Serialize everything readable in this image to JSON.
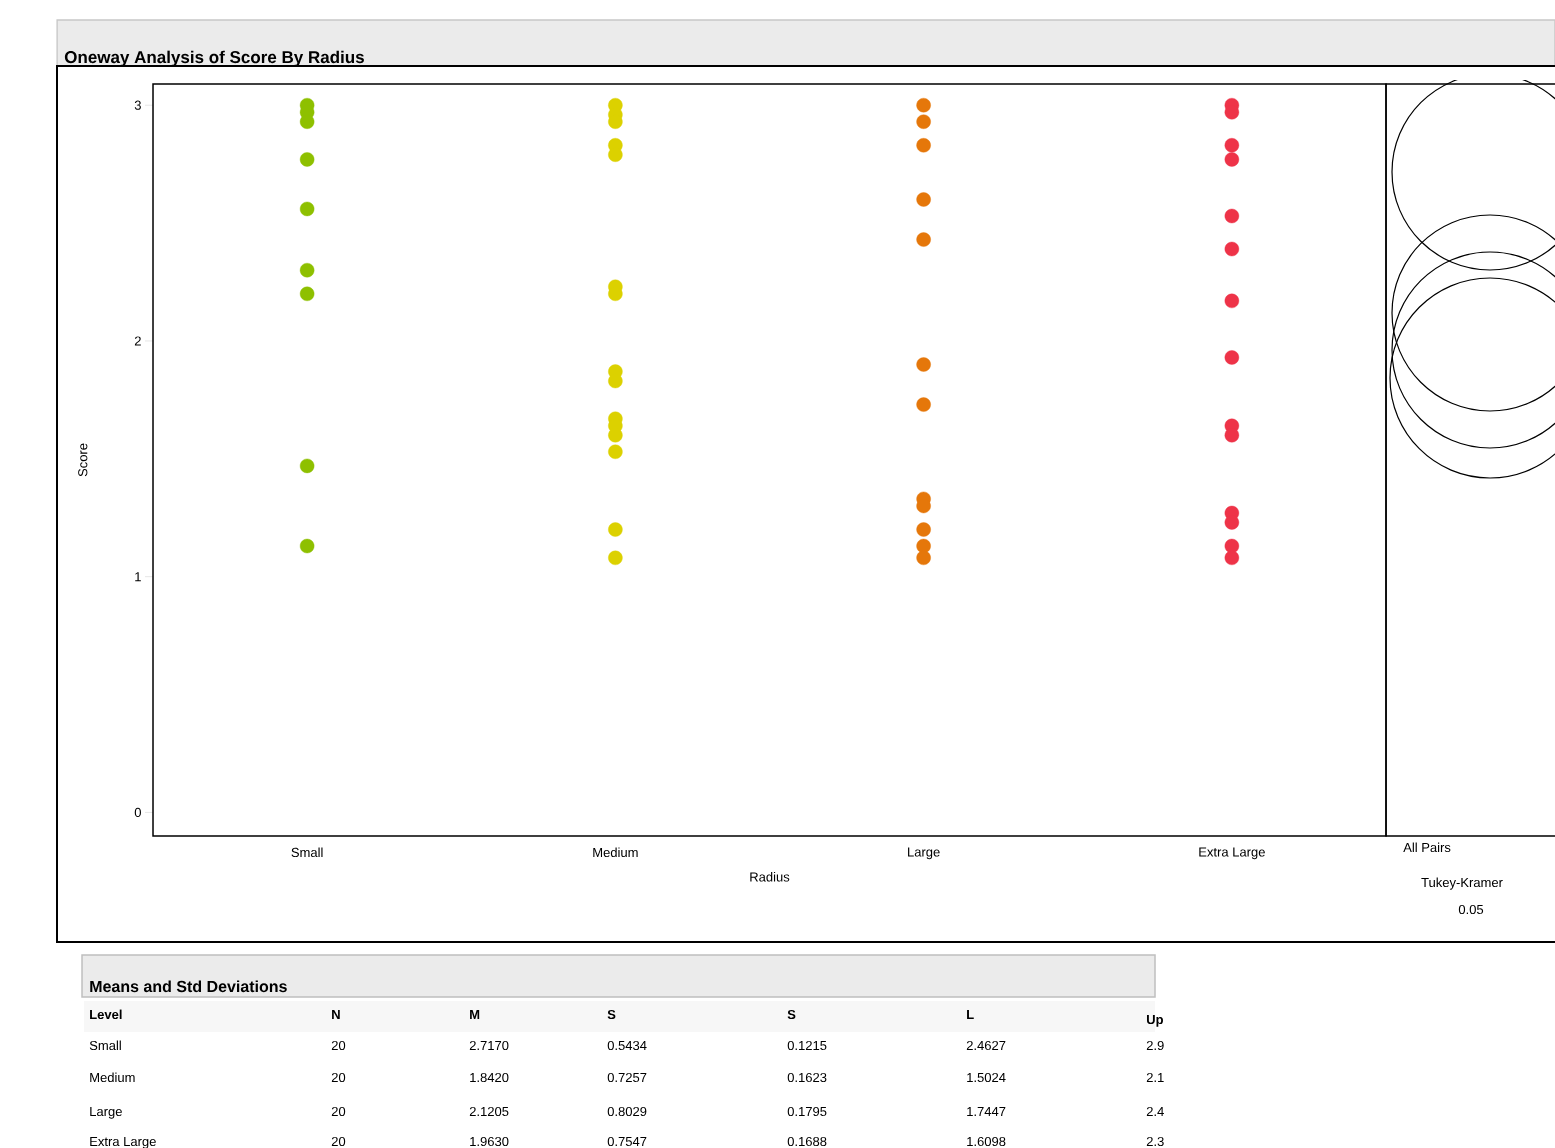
{
  "chart_data": {
    "type": "scatter",
    "title": "Oneway Analysis of Score By Radius",
    "xlabel": "Radius",
    "ylabel": "Score",
    "categories": [
      "Small",
      "Medium",
      "Large",
      "Extra Large"
    ],
    "series": [
      {
        "color": "#8ec000",
        "x": [
          "Small",
          "Small",
          "Small",
          "Small",
          "Small",
          "Small",
          "Small",
          "Small",
          "Small"
        ],
        "values": [
          3.0,
          2.97,
          2.93,
          2.77,
          2.56,
          2.3,
          2.2,
          1.47,
          1.13
        ]
      },
      {
        "color": "#dcd100",
        "x": [
          "Medium",
          "Medium",
          "Medium",
          "Medium",
          "Medium",
          "Medium",
          "Medium",
          "Medium",
          "Medium",
          "Medium",
          "Medium",
          "Medium",
          "Medium",
          "Medium",
          "Medium"
        ],
        "values": [
          3.0,
          2.96,
          2.93,
          2.83,
          2.79,
          2.23,
          2.2,
          1.87,
          1.83,
          1.67,
          1.64,
          1.6,
          1.53,
          1.2,
          1.08
        ]
      },
      {
        "color": "#e5770a",
        "x": [
          "Large",
          "Large",
          "Large",
          "Large",
          "Large",
          "Large",
          "Large",
          "Large",
          "Large",
          "Large",
          "Large",
          "Large"
        ],
        "values": [
          3.0,
          2.93,
          2.83,
          2.6,
          2.43,
          1.9,
          1.73,
          1.33,
          1.3,
          1.2,
          1.13,
          1.08
        ]
      },
      {
        "color": "#ee3348",
        "x": [
          "Extra Large",
          "Extra Large",
          "Extra Large",
          "Extra Large",
          "Extra Large",
          "Extra Large",
          "Extra Large",
          "Extra Large",
          "Extra Large",
          "Extra Large",
          "Extra Large",
          "Extra Large",
          "Extra Large",
          "Extra Large"
        ],
        "values": [
          3.0,
          2.97,
          2.83,
          2.77,
          2.53,
          2.39,
          2.17,
          1.93,
          1.64,
          1.6,
          1.27,
          1.23,
          1.13,
          1.08
        ]
      }
    ],
    "ylim": [
      -0.1,
      3.09
    ],
    "yticks": [
      0,
      1,
      2,
      3
    ],
    "marker": "circle",
    "annotations": [
      "All Pairs",
      "Tukey-Kramer",
      "0.05",
      "Means and Std Deviations",
      "Level",
      "N",
      "M",
      "S",
      "S",
      "L",
      "Up",
      "Small",
      "20",
      "2.7170",
      "0.5434",
      "0.1215",
      "2.4627",
      "2.9",
      "Medium",
      "20",
      "1.8420",
      "0.7257",
      "0.1623",
      "1.5024",
      "2.1",
      "Large",
      "20",
      "2.1205",
      "0.8029",
      "0.1795",
      "1.7447",
      "2.4",
      "Extra Large",
      "20",
      "1.9630",
      "0.7547",
      "0.1688",
      "1.6098",
      "2.3"
    ]
  }
}
